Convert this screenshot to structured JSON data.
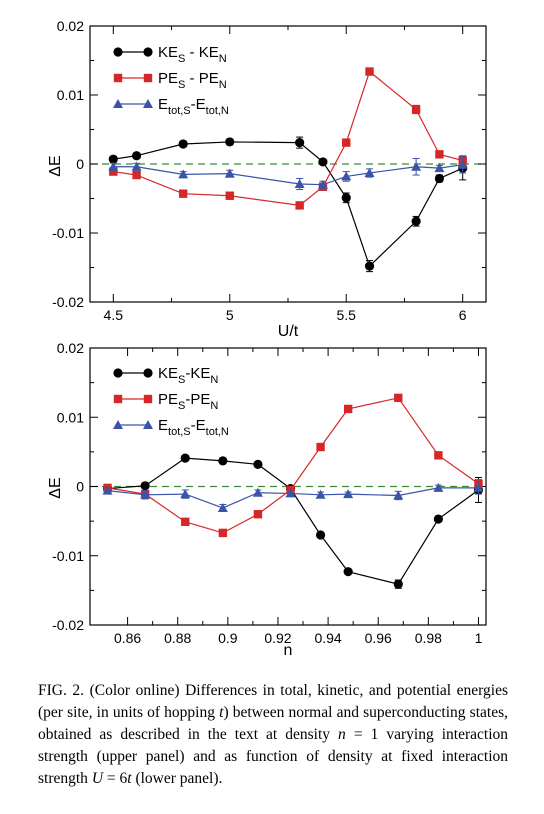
{
  "caption": {
    "label": "FIG. 2.",
    "parts": [
      {
        "t": " (Color online) Differences in total, kinetic, and potential energies (per site, in units of hopping ",
        "i": false
      },
      {
        "t": "t",
        "i": true
      },
      {
        "t": ") between normal and superconducting states, obtained as described in the text at density ",
        "i": false
      },
      {
        "t": "n",
        "i": true
      },
      {
        "t": " = 1 varying interaction strength (upper panel) and as function of density at fixed interaction strength ",
        "i": false
      },
      {
        "t": "U",
        "i": true
      },
      {
        "t": " = 6",
        "i": false
      },
      {
        "t": "t",
        "i": true
      },
      {
        "t": " (lower panel).",
        "i": false
      }
    ]
  },
  "chart_data": [
    {
      "type": "line",
      "xlabel": "U/t",
      "ylabel": "ΔE",
      "xlim": [
        4.4,
        6.1
      ],
      "ylim": [
        -0.02,
        0.02
      ],
      "xticks": [
        4.5,
        5,
        5.5,
        6
      ],
      "xtick_labels": [
        "4.5",
        "5",
        "5.5",
        "6"
      ],
      "yticks": [
        -0.02,
        -0.01,
        0,
        0.01,
        0.02
      ],
      "ytick_labels": [
        "-0.02",
        "-0.01",
        "0",
        "0.01",
        "0.02"
      ],
      "zero_line": {
        "color": "#3a8a3a",
        "style": "dashed"
      },
      "legend_position": "top-left",
      "series": [
        {
          "name": "KE_S - KE_N",
          "legend": {
            "base1": "KE",
            "sub1": "S",
            "mid": " - KE",
            "sub2": "N"
          },
          "color": "#000000",
          "marker": "circle",
          "x": [
            4.5,
            4.6,
            4.8,
            5.0,
            5.3,
            5.4,
            5.5,
            5.6,
            5.8,
            5.9,
            6.0
          ],
          "y": [
            0.0007,
            0.0012,
            0.0029,
            0.0032,
            0.0031,
            0.0003,
            -0.0049,
            -0.0148,
            -0.0083,
            -0.0021,
            -0.0006
          ],
          "err": [
            0.0004,
            0.0004,
            0.0004,
            0.0004,
            0.0008,
            0.0003,
            0.0007,
            0.0008,
            0.0007,
            0.0005,
            0.0017
          ]
        },
        {
          "name": "PE_S - PE_N",
          "legend": {
            "base1": "PE",
            "sub1": "S",
            "mid": " - PE",
            "sub2": "N"
          },
          "color": "#d62728",
          "marker": "square",
          "x": [
            4.5,
            4.6,
            4.8,
            5.0,
            5.3,
            5.4,
            5.5,
            5.6,
            5.8,
            5.9,
            6.0
          ],
          "y": [
            -0.0011,
            -0.0016,
            -0.0043,
            -0.0046,
            -0.006,
            -0.0033,
            0.0031,
            0.0134,
            0.0079,
            0.0014,
            0.0005
          ],
          "err": [
            0.0003,
            0.0003,
            0.0003,
            0.0003,
            0.0004,
            0.0003,
            0.0003,
            0.0003,
            0.0006,
            0.0003,
            0.0007
          ]
        },
        {
          "name": "E_tot,S-E_tot,N",
          "legend": {
            "base1": "E",
            "sub1": "tot,S",
            "mid": "-E",
            "sub2": "tot,N"
          },
          "color": "#3a54a8",
          "marker": "triangle",
          "x": [
            4.5,
            4.6,
            4.8,
            5.0,
            5.3,
            5.4,
            5.5,
            5.6,
            5.8,
            5.9,
            6.0
          ],
          "y": [
            -0.0004,
            -0.0004,
            -0.0015,
            -0.0014,
            -0.0029,
            -0.003,
            -0.0018,
            -0.0013,
            -0.0004,
            -0.0006,
            -0.0001
          ],
          "err": [
            0.0005,
            0.0005,
            0.0004,
            0.0005,
            0.0008,
            0.0005,
            0.0007,
            0.0006,
            0.0012,
            0.0004,
            0.0012
          ]
        }
      ]
    },
    {
      "type": "line",
      "xlabel": "n",
      "ylabel": "ΔE",
      "xlim": [
        0.845,
        1.003
      ],
      "ylim": [
        -0.02,
        0.02
      ],
      "xticks": [
        0.86,
        0.88,
        0.9,
        0.92,
        0.94,
        0.96,
        0.98,
        1.0
      ],
      "xtick_labels": [
        "0.86",
        "0.88",
        "0.9",
        "0.92",
        "0.94",
        "0.96",
        "0.98",
        "1"
      ],
      "yticks": [
        -0.02,
        -0.01,
        0,
        0.01,
        0.02
      ],
      "ytick_labels": [
        "-0.02",
        "-0.01",
        "0",
        "0.01",
        "0.02"
      ],
      "zero_line": {
        "color": "#3a8a3a",
        "style": "dashed"
      },
      "legend_position": "top-left",
      "series": [
        {
          "name": "KE_S-KE_N",
          "legend": {
            "base1": "KE",
            "sub1": "S",
            "mid": "-KE",
            "sub2": "N"
          },
          "color": "#000000",
          "marker": "circle",
          "x": [
            0.852,
            0.867,
            0.883,
            0.898,
            0.912,
            0.925,
            0.937,
            0.948,
            0.968,
            0.984,
            1.0
          ],
          "y": [
            -0.0003,
            0.0001,
            0.0041,
            0.0037,
            0.0032,
            -0.0003,
            -0.007,
            -0.0123,
            -0.0141,
            -0.0047,
            -0.0005
          ],
          "err": [
            0.0003,
            0.0003,
            0.0004,
            0.0003,
            0.0003,
            0.0003,
            0.0003,
            0.0003,
            0.0006,
            0.0004,
            0.0018
          ]
        },
        {
          "name": "PE_S-PE_N",
          "legend": {
            "base1": "PE",
            "sub1": "S",
            "mid": "-PE",
            "sub2": "N"
          },
          "color": "#d62728",
          "marker": "square",
          "x": [
            0.852,
            0.867,
            0.883,
            0.898,
            0.912,
            0.925,
            0.937,
            0.948,
            0.968,
            0.984,
            1.0
          ],
          "y": [
            -0.0002,
            -0.0011,
            -0.0051,
            -0.0067,
            -0.004,
            -0.0005,
            0.0057,
            0.0112,
            0.0128,
            0.0045,
            0.0004
          ],
          "err": [
            0.0002,
            0.0002,
            0.0002,
            0.0002,
            0.0002,
            0.0002,
            0.0002,
            0.0002,
            0.0002,
            0.0002,
            0.0006
          ]
        },
        {
          "name": "E_tot,S-E_tot,N",
          "legend": {
            "base1": "E",
            "sub1": "tot,S",
            "mid": "-E",
            "sub2": "tot,N"
          },
          "color": "#3a54a8",
          "marker": "triangle",
          "x": [
            0.852,
            0.867,
            0.883,
            0.898,
            0.912,
            0.925,
            0.937,
            0.948,
            0.968,
            0.984,
            1.0
          ],
          "y": [
            -0.0006,
            -0.0012,
            -0.0011,
            -0.0031,
            -0.0009,
            -0.001,
            -0.0012,
            -0.0011,
            -0.0013,
            -0.0002,
            -0.0002
          ],
          "err": [
            0.0004,
            0.0006,
            0.0006,
            0.0005,
            0.0004,
            0.0003,
            0.0004,
            0.0003,
            0.0006,
            0.0004,
            0.0009
          ]
        }
      ]
    }
  ]
}
